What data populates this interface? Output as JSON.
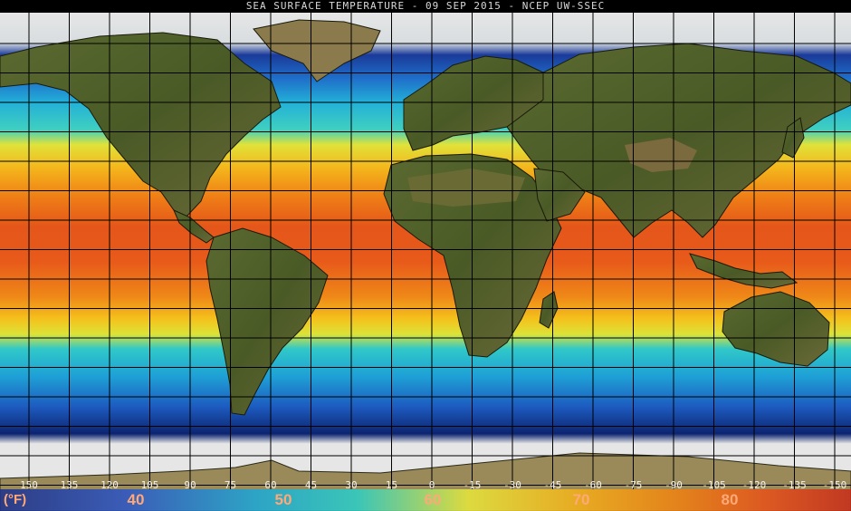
{
  "title": "SEA SURFACE TEMPERATURE - 09 SEP 2015 - NCEP UW-SSEC",
  "colorbar": {
    "unit_label": "(°F)",
    "temperature_labels": [
      "40",
      "50",
      "60",
      "70",
      "80"
    ],
    "colors": [
      "#1a2f8c",
      "#2a55c8",
      "#1aa8d8",
      "#2ad0c8",
      "#e8e83a",
      "#f5b018",
      "#f08010",
      "#e85018",
      "#c82a18"
    ]
  },
  "longitude_labels": [
    "150",
    "135",
    "120",
    "105",
    "90",
    "75",
    "60",
    "45",
    "30",
    "15",
    "0",
    "-15",
    "-30",
    "-45",
    "-60",
    "-75",
    "-90",
    "-105",
    "-120",
    "-135",
    "-150"
  ],
  "colors": {
    "land": "#52622c",
    "land_dry": "#8a7a48",
    "ice": "#e6e6e6",
    "polar_ocean": "#0a1e6e",
    "cold_ocean": "#1f5fc4",
    "cool_ocean": "#22b4d8",
    "mild_ocean": "#e4e23a",
    "warm_ocean": "#f5a51a",
    "hot_ocean": "#e8641a",
    "grid": "#000000"
  }
}
